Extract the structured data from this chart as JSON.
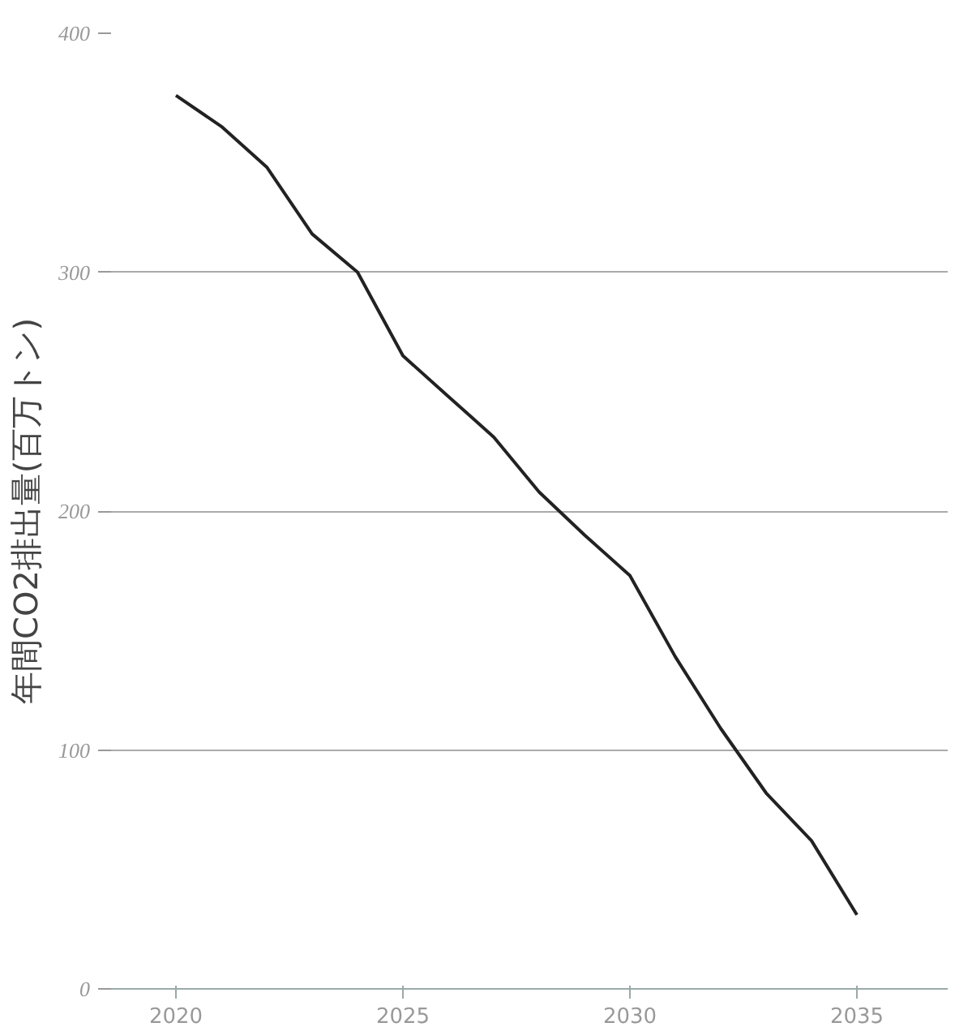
{
  "chart_data": {
    "type": "line",
    "ylabel": "年間CO2排出量(百万トン)",
    "x": [
      2020,
      2021,
      2022,
      2023,
      2024,
      2025,
      2026,
      2027,
      2028,
      2029,
      2030,
      2031,
      2032,
      2033,
      2034,
      2035
    ],
    "series": [
      {
        "color": "#222222",
        "values": [
          374,
          361,
          344,
          316,
          300,
          265,
          248,
          231,
          208,
          190,
          173,
          139,
          109,
          82,
          62,
          31
        ]
      }
    ],
    "xlim": [
      2018.5,
      2037
    ],
    "xticks": [
      2020,
      2025,
      2030,
      2035
    ],
    "ylim": [
      0,
      400
    ],
    "yticks": [
      0,
      100,
      200,
      300,
      400
    ],
    "grid": "y",
    "line_style": "solid"
  }
}
